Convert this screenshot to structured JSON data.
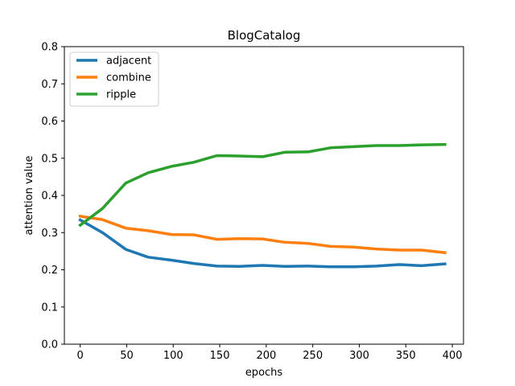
{
  "chart_data": {
    "type": "line",
    "title": "BlogCatalog",
    "xlabel": "epochs",
    "ylabel": "attention value",
    "xlim": [
      -17,
      412
    ],
    "ylim": [
      0.0,
      0.8
    ],
    "xticks": [
      0,
      50,
      100,
      150,
      200,
      250,
      300,
      350,
      400
    ],
    "yticks": [
      0.0,
      0.1,
      0.2,
      0.3,
      0.4,
      0.5,
      0.6,
      0.7,
      0.8
    ],
    "xtick_labels": [
      "0",
      "50",
      "100",
      "150",
      "200",
      "250",
      "300",
      "350",
      "400"
    ],
    "ytick_labels": [
      "0.0",
      "0.1",
      "0.2",
      "0.3",
      "0.4",
      "0.5",
      "0.6",
      "0.7",
      "0.8"
    ],
    "legend_position": "top-left",
    "grid": false,
    "x": [
      0,
      24,
      49,
      73,
      98,
      122,
      147,
      171,
      196,
      220,
      245,
      269,
      294,
      318,
      343,
      367,
      392
    ],
    "series": [
      {
        "name": "adjacent",
        "color": "#1f77b4",
        "values": [
          0.334,
          0.3,
          0.255,
          0.234,
          0.226,
          0.217,
          0.21,
          0.209,
          0.212,
          0.209,
          0.21,
          0.208,
          0.208,
          0.21,
          0.214,
          0.211,
          0.216
        ]
      },
      {
        "name": "combine",
        "color": "#ff7f0e",
        "values": [
          0.344,
          0.335,
          0.312,
          0.305,
          0.295,
          0.294,
          0.282,
          0.284,
          0.283,
          0.274,
          0.271,
          0.263,
          0.261,
          0.256,
          0.253,
          0.253,
          0.246
        ]
      },
      {
        "name": "ripple",
        "color": "#2ca02c",
        "values": [
          0.32,
          0.365,
          0.433,
          0.461,
          0.478,
          0.489,
          0.507,
          0.506,
          0.504,
          0.516,
          0.517,
          0.528,
          0.531,
          0.534,
          0.534,
          0.536,
          0.537
        ]
      }
    ]
  }
}
